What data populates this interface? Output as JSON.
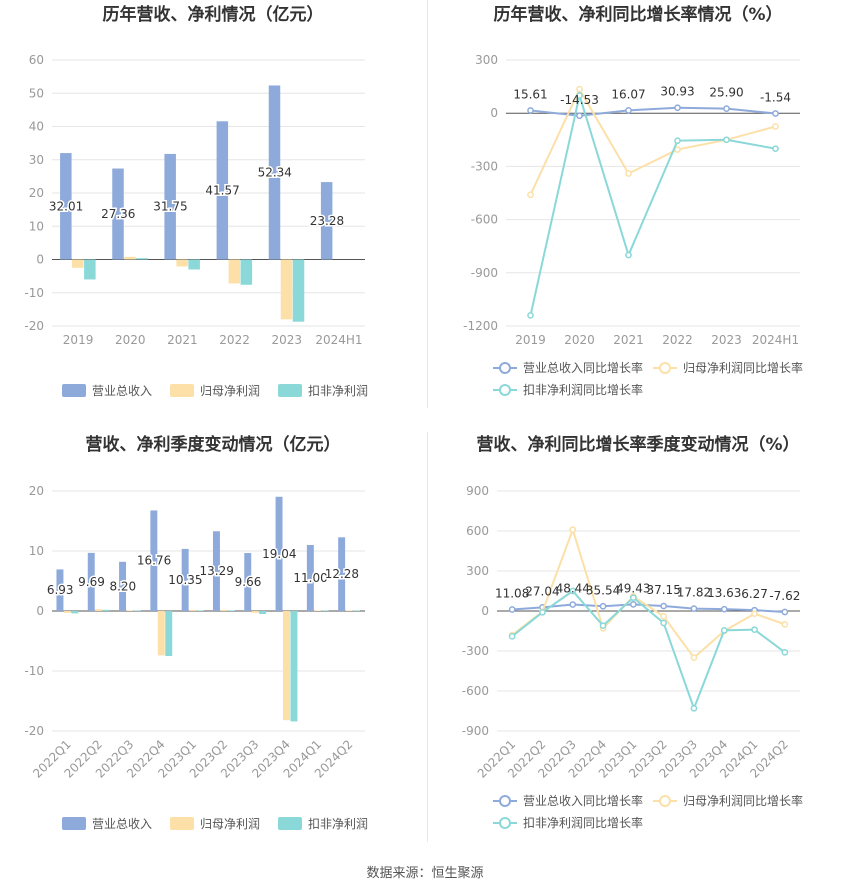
{
  "colors": {
    "revenue": "#8eaadb",
    "net_profit": "#fce0a8",
    "deducted_profit": "#8ad8d8",
    "revenue_line": "#8eaadb",
    "net_profit_line": "#fce0a8",
    "deducted_profit_line": "#8ad8d8",
    "axis_text": "#999999",
    "grid": "#e6e6e6",
    "title": "#333333"
  },
  "footer": {
    "source": "数据来源：恒生聚源"
  },
  "chart_data": [
    {
      "id": "annual-amount",
      "type": "bar",
      "title": "历年营收、净利情况（亿元）",
      "categories": [
        "2019",
        "2020",
        "2021",
        "2022",
        "2023",
        "2024H1"
      ],
      "ylim": [
        -20,
        60
      ],
      "yticks": [
        -20,
        -10,
        0,
        10,
        20,
        30,
        40,
        50,
        60
      ],
      "grid": true,
      "legend_position": "bottom",
      "series": [
        {
          "name": "营业总收入",
          "values": [
            32.01,
            27.36,
            31.75,
            41.57,
            52.34,
            23.28
          ],
          "labels": [
            "32.01",
            "27.36",
            "31.75",
            "41.57",
            "52.34",
            "23.28"
          ]
        },
        {
          "name": "归母净利润",
          "values": [
            -2.5,
            0.8,
            -2.1,
            -7.2,
            -18.0,
            0
          ]
        },
        {
          "name": "扣非净利润",
          "values": [
            -6.0,
            0.4,
            -3.0,
            -7.6,
            -18.7,
            0
          ]
        }
      ]
    },
    {
      "id": "annual-growth",
      "type": "line",
      "title": "历年营收、净利同比增长率情况（%）",
      "categories": [
        "2019",
        "2020",
        "2021",
        "2022",
        "2023",
        "2024H1"
      ],
      "ylim": [
        -1200,
        300
      ],
      "yticks": [
        -1200,
        -900,
        -600,
        -300,
        0,
        300
      ],
      "grid": true,
      "legend_position": "bottom",
      "series": [
        {
          "name": "营业总收入同比增长率",
          "values": [
            15.61,
            -14.53,
            16.07,
            30.93,
            25.9,
            -1.54
          ],
          "labels": [
            "15.61",
            "-14.53",
            "16.07",
            "30.93",
            "25.90",
            "-1.54"
          ]
        },
        {
          "name": "归母净利润同比增长率",
          "values": [
            -460,
            135,
            -340,
            -205,
            -150,
            -75
          ]
        },
        {
          "name": "扣非净利润同比增长率",
          "values": [
            -1140,
            100,
            -800,
            -155,
            -150,
            -200
          ]
        }
      ]
    },
    {
      "id": "quarterly-amount",
      "type": "bar",
      "title": "营收、净利季度变动情况（亿元）",
      "categories": [
        "2022Q1",
        "2022Q2",
        "2022Q3",
        "2022Q4",
        "2023Q1",
        "2023Q2",
        "2023Q3",
        "2023Q4",
        "2024Q1",
        "2024Q2"
      ],
      "ylim": [
        -20,
        20
      ],
      "yticks": [
        -20,
        -10,
        0,
        10,
        20
      ],
      "grid": true,
      "legend_position": "bottom",
      "series": [
        {
          "name": "营业总收入",
          "values": [
            6.93,
            9.69,
            8.2,
            16.76,
            10.35,
            13.29,
            9.66,
            19.04,
            11.0,
            12.28
          ],
          "labels": [
            "6.93",
            "9.69",
            "8.20",
            "16.76",
            "10.35",
            "13.29",
            "9.66",
            "19.04",
            "11.00",
            "12.28"
          ]
        },
        {
          "name": "归母净利润",
          "values": [
            -0.3,
            0.3,
            0.1,
            -7.4,
            0.2,
            0.2,
            -0.3,
            -18.2,
            0.1,
            0.1
          ]
        },
        {
          "name": "扣非净利润",
          "values": [
            -0.4,
            0.2,
            0.1,
            -7.5,
            0.1,
            0.1,
            -0.5,
            -18.4,
            0.1,
            0.1
          ]
        }
      ]
    },
    {
      "id": "quarterly-growth",
      "type": "line",
      "title": "营收、净利同比增长率季度变动情况（%）",
      "categories": [
        "2022Q1",
        "2022Q2",
        "2022Q3",
        "2022Q4",
        "2023Q1",
        "2023Q2",
        "2023Q3",
        "2023Q4",
        "2024Q1",
        "2024Q2"
      ],
      "ylim": [
        -900,
        900
      ],
      "yticks": [
        -900,
        -600,
        -300,
        0,
        300,
        600,
        900
      ],
      "grid": true,
      "legend_position": "bottom",
      "series": [
        {
          "name": "营业总收入同比增长率",
          "values": [
            11.08,
            27.04,
            48.44,
            35.54,
            49.43,
            37.15,
            17.82,
            13.63,
            6.27,
            -7.62
          ],
          "labels": [
            "11.08",
            "27.04",
            "48.44",
            "35.54",
            "49.43",
            "37.15",
            "17.82",
            "13.63",
            "6.27",
            "-7.62"
          ]
        },
        {
          "name": "归母净利润同比增长率",
          "values": [
            -180,
            -5,
            610,
            -130,
            110,
            -40,
            -350,
            -150,
            -20,
            -100
          ]
        },
        {
          "name": "扣非净利润同比增长率",
          "values": [
            -190,
            -10,
            150,
            -110,
            100,
            -90,
            -730,
            -145,
            -140,
            -310
          ]
        }
      ]
    }
  ]
}
